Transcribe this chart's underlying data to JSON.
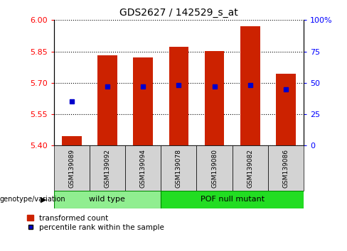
{
  "title": "GDS2627 / 142529_s_at",
  "samples": [
    "GSM139089",
    "GSM139092",
    "GSM139094",
    "GSM139078",
    "GSM139080",
    "GSM139082",
    "GSM139086"
  ],
  "bar_tops": [
    5.445,
    5.832,
    5.822,
    5.872,
    5.852,
    5.972,
    5.742
  ],
  "bar_bottom": 5.4,
  "percentile_ranks": [
    35,
    47,
    47,
    48,
    47,
    48,
    45
  ],
  "ylim": [
    5.4,
    6.0
  ],
  "yticks_left": [
    5.4,
    5.55,
    5.7,
    5.85,
    6.0
  ],
  "yticks_right": [
    0,
    25,
    50,
    75,
    100
  ],
  "bar_color": "#cc2200",
  "dot_color": "#0000cc",
  "wt_color_light": "#b8f0b8",
  "wt_color": "#90ee90",
  "pof_color": "#22dd22",
  "wt_count": 3,
  "pof_count": 4,
  "bar_width": 0.55,
  "legend_label_bar": "transformed count",
  "legend_label_dot": "percentile rank within the sample",
  "xlabel_group": "genotype/variation",
  "wt_label": "wild type",
  "pof_label": "POF null mutant"
}
